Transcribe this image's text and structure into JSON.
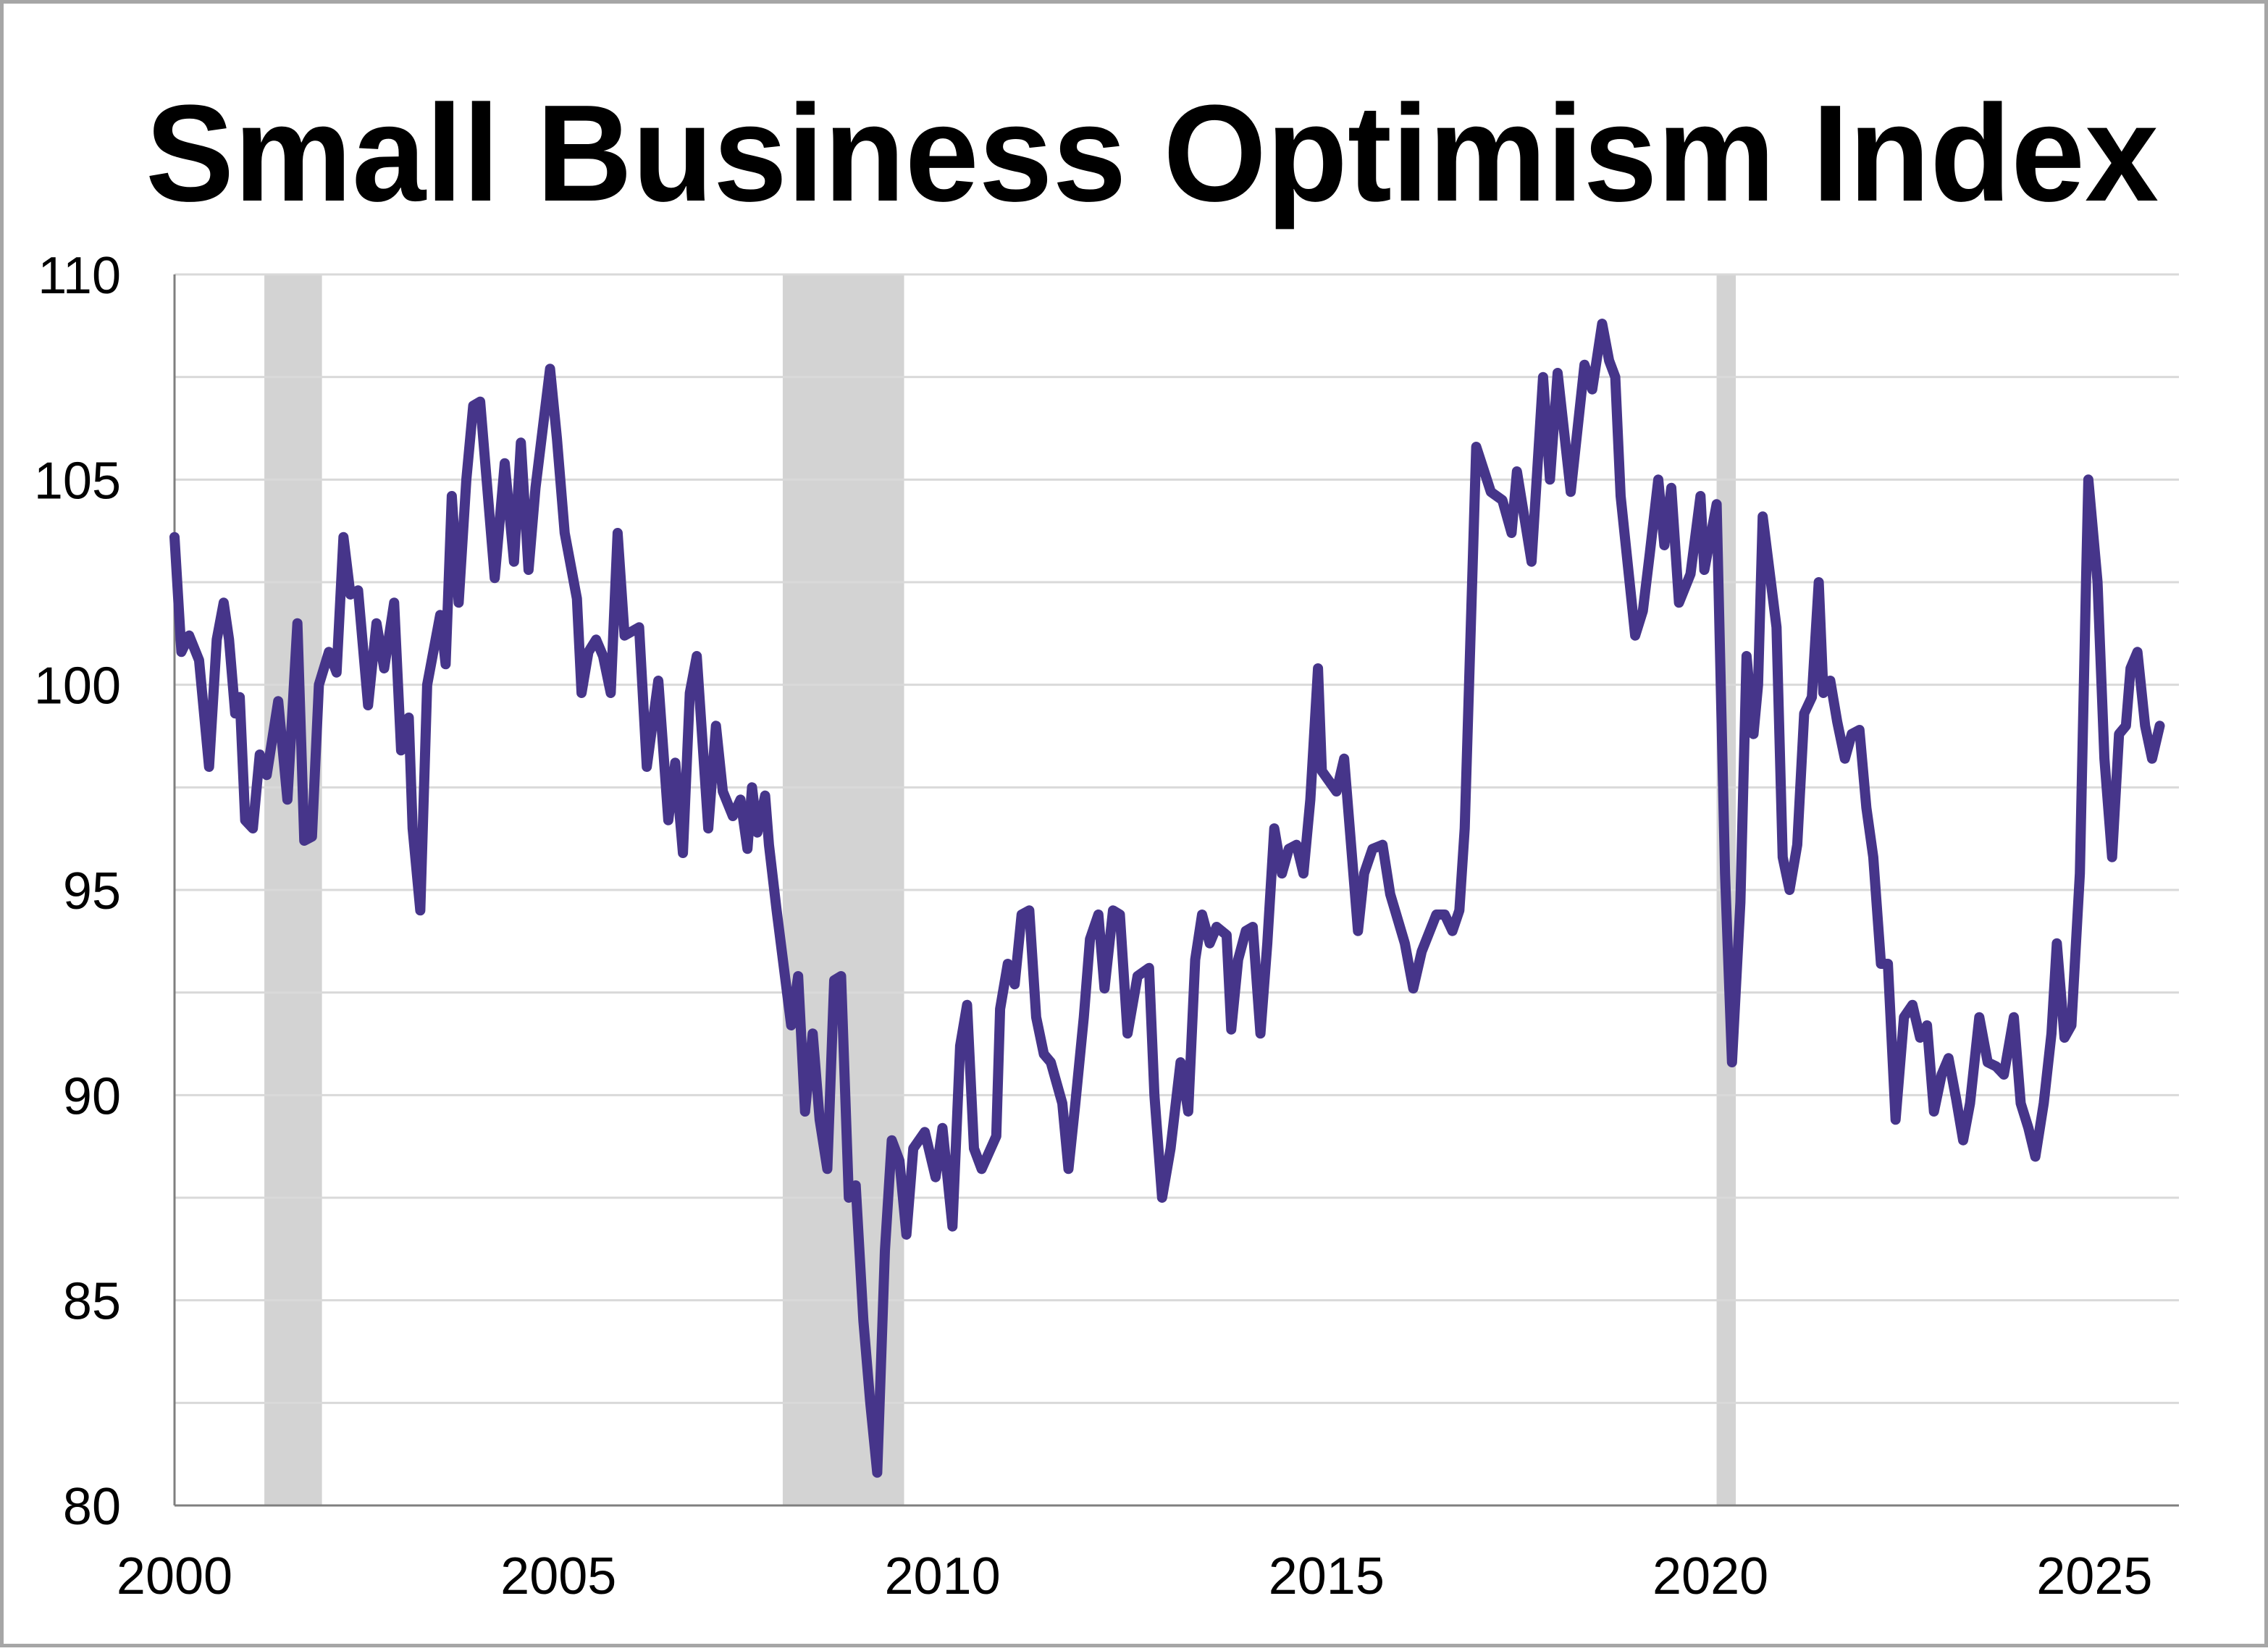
{
  "chart_data": {
    "type": "line",
    "title": "Small Business Optimism Index",
    "xlabel": "",
    "ylabel": "",
    "xlim": [
      2000,
      2026.1
    ],
    "ylim": [
      80,
      110
    ],
    "x_ticks": [
      "2000",
      "2005",
      "2010",
      "2015",
      "2020",
      "2025"
    ],
    "y_ticks": [
      "80",
      "85",
      "90",
      "95",
      "100",
      "105",
      "110"
    ],
    "grid": "horizontal, every 2.5",
    "legend": "none",
    "line_color": "#46358A",
    "shading_color": "#D3D3D3",
    "shaded_periods": [
      [
        2001.17,
        2001.92
      ],
      [
        2007.92,
        2009.5
      ],
      [
        2020.08,
        2020.33
      ]
    ],
    "series": [
      {
        "points": [
          [
            2000.0,
            103.6
          ],
          [
            2000.09,
            100.8
          ],
          [
            2000.19,
            101.2
          ],
          [
            2000.32,
            100.6
          ],
          [
            2000.45,
            98.0
          ],
          [
            2000.55,
            101.1
          ],
          [
            2000.64,
            102.0
          ],
          [
            2000.71,
            101.1
          ],
          [
            2000.79,
            99.3
          ],
          [
            2000.85,
            99.7
          ],
          [
            2000.92,
            96.7
          ],
          [
            2001.02,
            96.5
          ],
          [
            2001.11,
            98.3
          ],
          [
            2001.2,
            97.8
          ],
          [
            2001.35,
            99.6
          ],
          [
            2001.47,
            97.2
          ],
          [
            2001.6,
            101.5
          ],
          [
            2001.69,
            96.2
          ],
          [
            2001.79,
            96.3
          ],
          [
            2001.88,
            100.0
          ],
          [
            2002.01,
            100.8
          ],
          [
            2002.11,
            100.3
          ],
          [
            2002.2,
            103.6
          ],
          [
            2002.29,
            102.2
          ],
          [
            2002.39,
            102.3
          ],
          [
            2002.52,
            99.5
          ],
          [
            2002.63,
            101.5
          ],
          [
            2002.73,
            100.4
          ],
          [
            2002.86,
            102.0
          ],
          [
            2002.95,
            98.4
          ],
          [
            2003.05,
            99.2
          ],
          [
            2003.1,
            96.5
          ],
          [
            2003.2,
            94.5
          ],
          [
            2003.29,
            100.0
          ],
          [
            2003.46,
            101.7
          ],
          [
            2003.53,
            100.5
          ],
          [
            2003.61,
            104.6
          ],
          [
            2003.7,
            102.0
          ],
          [
            2003.8,
            105.0
          ],
          [
            2003.89,
            106.8
          ],
          [
            2003.98,
            106.9
          ],
          [
            2004.17,
            102.6
          ],
          [
            2004.3,
            105.4
          ],
          [
            2004.42,
            103.0
          ],
          [
            2004.51,
            105.9
          ],
          [
            2004.61,
            102.8
          ],
          [
            2004.7,
            104.8
          ],
          [
            2004.89,
            107.7
          ],
          [
            2004.98,
            106.0
          ],
          [
            2005.08,
            103.7
          ],
          [
            2005.24,
            102.1
          ],
          [
            2005.3,
            99.8
          ],
          [
            2005.39,
            100.8
          ],
          [
            2005.49,
            101.1
          ],
          [
            2005.58,
            100.7
          ],
          [
            2005.68,
            99.8
          ],
          [
            2005.77,
            103.7
          ],
          [
            2005.86,
            101.2
          ],
          [
            2006.05,
            101.4
          ],
          [
            2006.15,
            98.0
          ],
          [
            2006.3,
            100.1
          ],
          [
            2006.43,
            96.7
          ],
          [
            2006.52,
            98.1
          ],
          [
            2006.62,
            95.9
          ],
          [
            2006.71,
            99.8
          ],
          [
            2006.8,
            100.7
          ],
          [
            2006.95,
            96.5
          ],
          [
            2007.05,
            99.0
          ],
          [
            2007.14,
            97.4
          ],
          [
            2007.27,
            96.8
          ],
          [
            2007.37,
            97.2
          ],
          [
            2007.46,
            96.0
          ],
          [
            2007.52,
            97.5
          ],
          [
            2007.59,
            96.4
          ],
          [
            2007.69,
            97.3
          ],
          [
            2007.74,
            96.1
          ],
          [
            2007.84,
            94.5
          ],
          [
            2008.03,
            91.7
          ],
          [
            2008.12,
            92.9
          ],
          [
            2008.21,
            89.6
          ],
          [
            2008.31,
            91.5
          ],
          [
            2008.4,
            89.4
          ],
          [
            2008.5,
            88.2
          ],
          [
            2008.59,
            92.8
          ],
          [
            2008.68,
            92.9
          ],
          [
            2008.78,
            87.5
          ],
          [
            2008.87,
            87.8
          ],
          [
            2008.97,
            84.5
          ],
          [
            2009.06,
            82.5
          ],
          [
            2009.15,
            80.8
          ],
          [
            2009.25,
            86.2
          ],
          [
            2009.34,
            88.9
          ],
          [
            2009.44,
            88.4
          ],
          [
            2009.53,
            86.6
          ],
          [
            2009.62,
            88.7
          ],
          [
            2009.77,
            89.1
          ],
          [
            2009.91,
            88.0
          ],
          [
            2010.0,
            89.2
          ],
          [
            2010.13,
            86.8
          ],
          [
            2010.23,
            91.2
          ],
          [
            2010.32,
            92.2
          ],
          [
            2010.41,
            88.7
          ],
          [
            2010.51,
            88.2
          ],
          [
            2010.7,
            89.0
          ],
          [
            2010.75,
            92.1
          ],
          [
            2010.85,
            93.2
          ],
          [
            2010.94,
            92.7
          ],
          [
            2011.03,
            94.4
          ],
          [
            2011.13,
            94.5
          ],
          [
            2011.22,
            91.9
          ],
          [
            2011.32,
            91.0
          ],
          [
            2011.41,
            90.8
          ],
          [
            2011.56,
            89.8
          ],
          [
            2011.64,
            88.2
          ],
          [
            2011.73,
            89.8
          ],
          [
            2011.84,
            91.9
          ],
          [
            2011.92,
            93.8
          ],
          [
            2012.03,
            94.4
          ],
          [
            2012.11,
            92.6
          ],
          [
            2012.22,
            94.5
          ],
          [
            2012.31,
            94.4
          ],
          [
            2012.41,
            91.5
          ],
          [
            2012.54,
            92.9
          ],
          [
            2012.69,
            93.1
          ],
          [
            2012.76,
            90.0
          ],
          [
            2012.86,
            87.5
          ],
          [
            2012.97,
            88.7
          ],
          [
            2013.1,
            90.8
          ],
          [
            2013.2,
            89.6
          ],
          [
            2013.29,
            93.3
          ],
          [
            2013.38,
            94.4
          ],
          [
            2013.48,
            93.7
          ],
          [
            2013.57,
            94.1
          ],
          [
            2013.7,
            93.9
          ],
          [
            2013.76,
            91.6
          ],
          [
            2013.85,
            93.3
          ],
          [
            2013.95,
            94.0
          ],
          [
            2014.04,
            94.1
          ],
          [
            2014.14,
            91.5
          ],
          [
            2014.23,
            93.7
          ],
          [
            2014.32,
            96.5
          ],
          [
            2014.42,
            95.4
          ],
          [
            2014.51,
            96.0
          ],
          [
            2014.61,
            96.1
          ],
          [
            2014.7,
            95.4
          ],
          [
            2014.79,
            97.2
          ],
          [
            2014.89,
            100.4
          ],
          [
            2014.94,
            97.9
          ],
          [
            2015.13,
            97.4
          ],
          [
            2015.23,
            98.2
          ],
          [
            2015.41,
            94.0
          ],
          [
            2015.49,
            95.4
          ],
          [
            2015.6,
            96.0
          ],
          [
            2015.73,
            96.1
          ],
          [
            2015.83,
            94.9
          ],
          [
            2016.02,
            93.7
          ],
          [
            2016.13,
            92.6
          ],
          [
            2016.24,
            93.5
          ],
          [
            2016.43,
            94.4
          ],
          [
            2016.54,
            94.4
          ],
          [
            2016.64,
            94.0
          ],
          [
            2016.73,
            94.5
          ],
          [
            2016.8,
            96.5
          ],
          [
            2016.95,
            105.8
          ],
          [
            2017.14,
            104.7
          ],
          [
            2017.29,
            104.5
          ],
          [
            2017.41,
            103.7
          ],
          [
            2017.48,
            105.2
          ],
          [
            2017.67,
            103.0
          ],
          [
            2017.82,
            107.5
          ],
          [
            2017.91,
            105.0
          ],
          [
            2018.01,
            107.6
          ],
          [
            2018.18,
            104.7
          ],
          [
            2018.36,
            107.8
          ],
          [
            2018.46,
            107.2
          ],
          [
            2018.59,
            108.8
          ],
          [
            2018.68,
            107.9
          ],
          [
            2018.76,
            107.5
          ],
          [
            2018.83,
            104.6
          ],
          [
            2019.02,
            101.2
          ],
          [
            2019.12,
            101.8
          ],
          [
            2019.21,
            103.2
          ],
          [
            2019.32,
            105.0
          ],
          [
            2019.4,
            103.4
          ],
          [
            2019.49,
            104.8
          ],
          [
            2019.59,
            102.0
          ],
          [
            2019.74,
            102.7
          ],
          [
            2019.87,
            104.6
          ],
          [
            2019.92,
            102.8
          ],
          [
            2020.08,
            104.4
          ],
          [
            2020.19,
            95.4
          ],
          [
            2020.28,
            90.8
          ],
          [
            2020.39,
            94.7
          ],
          [
            2020.47,
            100.7
          ],
          [
            2020.56,
            98.8
          ],
          [
            2020.62,
            100.0
          ],
          [
            2020.68,
            104.1
          ],
          [
            2020.86,
            101.4
          ],
          [
            2020.94,
            95.8
          ],
          [
            2021.03,
            95.0
          ],
          [
            2021.13,
            96.1
          ],
          [
            2021.22,
            99.3
          ],
          [
            2021.32,
            99.7
          ],
          [
            2021.41,
            102.5
          ],
          [
            2021.47,
            99.8
          ],
          [
            2021.56,
            100.1
          ],
          [
            2021.65,
            99.1
          ],
          [
            2021.75,
            98.2
          ],
          [
            2021.84,
            98.8
          ],
          [
            2021.94,
            98.9
          ],
          [
            2022.03,
            97.0
          ],
          [
            2022.12,
            95.8
          ],
          [
            2022.22,
            93.2
          ],
          [
            2022.31,
            93.2
          ],
          [
            2022.41,
            89.4
          ],
          [
            2022.52,
            91.9
          ],
          [
            2022.63,
            92.2
          ],
          [
            2022.73,
            91.4
          ],
          [
            2022.82,
            91.7
          ],
          [
            2022.91,
            89.6
          ],
          [
            2023.01,
            90.5
          ],
          [
            2023.1,
            90.9
          ],
          [
            2023.2,
            89.9
          ],
          [
            2023.29,
            88.9
          ],
          [
            2023.38,
            89.8
          ],
          [
            2023.5,
            91.9
          ],
          [
            2023.61,
            90.8
          ],
          [
            2023.72,
            90.7
          ],
          [
            2023.82,
            90.5
          ],
          [
            2023.95,
            91.9
          ],
          [
            2024.04,
            89.8
          ],
          [
            2024.14,
            89.2
          ],
          [
            2024.23,
            88.5
          ],
          [
            2024.34,
            89.8
          ],
          [
            2024.44,
            91.5
          ],
          [
            2024.51,
            93.7
          ],
          [
            2024.61,
            91.4
          ],
          [
            2024.7,
            91.7
          ],
          [
            2024.81,
            95.4
          ],
          [
            2024.89,
            102.5
          ],
          [
            2024.92,
            105.0
          ],
          [
            2025.04,
            102.5
          ],
          [
            2025.13,
            98.2
          ],
          [
            2025.23,
            95.8
          ],
          [
            2025.32,
            98.8
          ],
          [
            2025.41,
            99.0
          ],
          [
            2025.47,
            100.4
          ],
          [
            2025.56,
            100.8
          ],
          [
            2025.66,
            99.0
          ],
          [
            2025.75,
            98.2
          ],
          [
            2025.85,
            99.0
          ]
        ]
      }
    ]
  }
}
